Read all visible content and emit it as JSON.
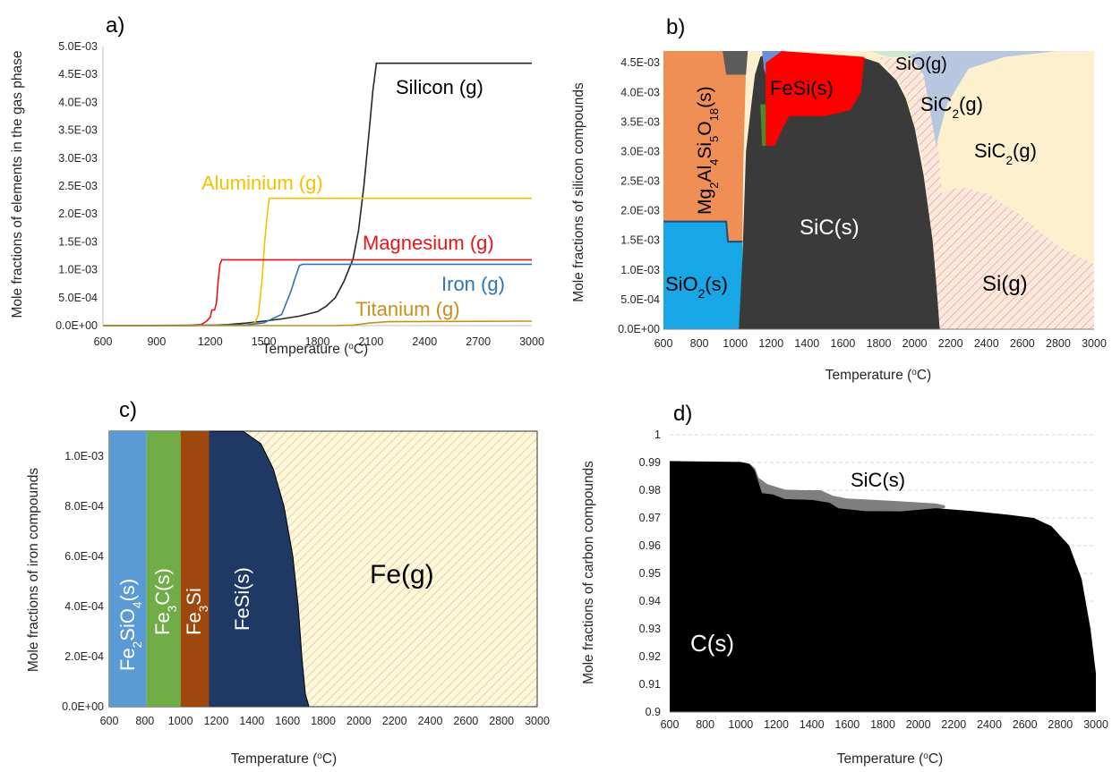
{
  "colors": {
    "silicon": "#262626",
    "aluminium": "#f5c000",
    "magnesium": "#e8141b",
    "iron": "#2e75b6",
    "titanium": "#c8901a",
    "sio2": "#17a6e6",
    "mgalsi": "#f08f55",
    "sic": "#3a3a3a",
    "sic_dark": "#5c5c5c",
    "fesi_b": "#ff0000",
    "fesi_c": "#203864",
    "fe2sio4": "#5b9bd5",
    "fe3c": "#70ad47",
    "fe3si": "#9e480e",
    "blue_b": "#6b8fd6",
    "green_b": "#4e8a2a",
    "sio_g": "#cfe6cf",
    "sic2_g_upper": "#b8c7e0",
    "sic2_g": "#fdf0cf",
    "si_g_hatch": "#f4c6b0",
    "fe_g_hatch": "#f0d68e",
    "fe_g_bg": "#fff8e1",
    "c_s": "#000000",
    "sic_s_d": "#7f7f7f",
    "grid": "#d9d9d9"
  },
  "chart_data": [
    {
      "panel": "a)",
      "type": "line",
      "xlabel": "Temperature (°C)",
      "ylabel": "Mole fractions of elements in the gas phase",
      "xlim": [
        600,
        3000
      ],
      "ylim": [
        0,
        0.005
      ],
      "xticks": [
        "600",
        "900",
        "1200",
        "1500",
        "1800",
        "2100",
        "2400",
        "2700",
        "3000"
      ],
      "yticks": [
        "0.0E+00",
        "5.0E-04",
        "1.0E-03",
        "1.5E-03",
        "2.0E-03",
        "2.5E-03",
        "3.0E-03",
        "3.5E-03",
        "4.0E-03",
        "4.5E-03",
        "5.0E-03"
      ],
      "labels": [
        "Silicon (g)",
        "Aluminium (g)",
        "Magnesium (g)",
        "Iron (g)",
        "Titanium (g)"
      ],
      "series": [
        {
          "name": "Silicon (g)",
          "color_key": "silicon",
          "points": [
            [
              600,
              0
            ],
            [
              1100,
              2e-06
            ],
            [
              1200,
              8e-06
            ],
            [
              1300,
              2e-05
            ],
            [
              1400,
              4.5e-05
            ],
            [
              1500,
              8e-05
            ],
            [
              1600,
              0.00012
            ],
            [
              1700,
              0.00017
            ],
            [
              1800,
              0.00025
            ],
            [
              1850,
              0.00035
            ],
            [
              1900,
              0.0005
            ],
            [
              1950,
              0.0008
            ],
            [
              2000,
              0.0012
            ],
            [
              2030,
              0.0017
            ],
            [
              2060,
              0.0025
            ],
            [
              2090,
              0.0035
            ],
            [
              2110,
              0.0042
            ],
            [
              2130,
              0.0047
            ],
            [
              3000,
              0.0047
            ]
          ]
        },
        {
          "name": "Aluminium (g)",
          "color_key": "aluminium",
          "points": [
            [
              600,
              0
            ],
            [
              1400,
              1e-05
            ],
            [
              1450,
              5e-05
            ],
            [
              1470,
              0.0002
            ],
            [
              1490,
              0.0008
            ],
            [
              1505,
              0.0015
            ],
            [
              1520,
              0.002
            ],
            [
              1530,
              0.00228
            ],
            [
              3000,
              0.00228
            ]
          ]
        },
        {
          "name": "Magnesium (g)",
          "color_key": "magnesium",
          "points": [
            [
              600,
              0
            ],
            [
              1050,
              0
            ],
            [
              1150,
              2e-05
            ],
            [
              1180,
              8e-05
            ],
            [
              1200,
              0.00015
            ],
            [
              1210,
              0.00028
            ],
            [
              1225,
              0.00028
            ],
            [
              1235,
              0.0004
            ],
            [
              1245,
              0.0008
            ],
            [
              1255,
              0.0011
            ],
            [
              1265,
              0.00118
            ],
            [
              3000,
              0.00118
            ]
          ]
        },
        {
          "name": "Iron (g)",
          "color_key": "iron",
          "points": [
            [
              600,
              0
            ],
            [
              1400,
              1e-05
            ],
            [
              1500,
              5e-05
            ],
            [
              1600,
              0.0002
            ],
            [
              1650,
              0.0006
            ],
            [
              1680,
              0.0009
            ],
            [
              1700,
              0.00108
            ],
            [
              1720,
              0.0011
            ],
            [
              3000,
              0.0011
            ]
          ]
        },
        {
          "name": "Titanium (g)",
          "color_key": "titanium",
          "points": [
            [
              600,
              0
            ],
            [
              1900,
              0
            ],
            [
              2000,
              1e-05
            ],
            [
              2100,
              5e-05
            ],
            [
              2200,
              7e-05
            ],
            [
              3000,
              8e-05
            ]
          ]
        }
      ]
    },
    {
      "panel": "b)",
      "type": "area",
      "xlabel": "Temperature (°C)",
      "ylabel": "Mole fractions of silicon compounds",
      "xlim": [
        600,
        3000
      ],
      "ylim": [
        0,
        0.0047
      ],
      "xticks": [
        "600",
        "800",
        "1000",
        "1200",
        "1400",
        "1600",
        "1800",
        "2000",
        "2200",
        "2400",
        "2600",
        "2800",
        "3000"
      ],
      "yticks": [
        "0.0E+00",
        "5.0E-04",
        "1.0E-03",
        "1.5E-03",
        "2.0E-03",
        "2.5E-03",
        "3.0E-03",
        "3.5E-03",
        "4.0E-03",
        "4.5E-03"
      ],
      "labels": [
        "SiO(g)",
        "FeSi(s)",
        "SiC(s)",
        "Si(g)"
      ],
      "sub_labels": [
        {
          "main": "Mg",
          "sub1": "2",
          "mid1": "Al",
          "sub2": "4",
          "mid2": "Si",
          "sub3": "5",
          "mid3": "O",
          "sub4": "18",
          "end": "(s)"
        }
      ],
      "sio2_label": {
        "main": "SiO",
        "sub": "2",
        "end": "(s)"
      },
      "sic2_label": {
        "main": "SiC",
        "sub": "2",
        "end": "(g)"
      },
      "regions": [
        {
          "name": "SiO2(s)",
          "color_key": "sio2",
          "points": [
            [
              600,
              0
            ],
            [
              1040,
              0
            ],
            [
              1040,
              0.00148
            ],
            [
              960,
              0.00148
            ],
            [
              950,
              0.00182
            ],
            [
              600,
              0.00182
            ]
          ]
        },
        {
          "name": "Mg2Al4Si5O18(s)",
          "color_key": "mgalsi",
          "points": [
            [
              600,
              0.00182
            ],
            [
              950,
              0.00182
            ],
            [
              960,
              0.00148
            ],
            [
              1040,
              0.00148
            ],
            [
              1045,
              0.0028
            ],
            [
              1060,
              0.0044
            ],
            [
              1040,
              0.0047
            ],
            [
              600,
              0.0047
            ]
          ]
        },
        {
          "name": "SiC(s)",
          "color_key": "sic",
          "points": [
            [
              1020,
              0
            ],
            [
              1040,
              0.0012
            ],
            [
              1060,
              0.003
            ],
            [
              1090,
              0.0038
            ],
            [
              1110,
              0.0043
            ],
            [
              1140,
              0.0046
            ],
            [
              1200,
              0.0047
            ],
            [
              1700,
              0.0046
            ],
            [
              1800,
              0.0045
            ],
            [
              1900,
              0.0042
            ],
            [
              1950,
              0.0039
            ],
            [
              2000,
              0.0034
            ],
            [
              2050,
              0.0026
            ],
            [
              2100,
              0.0015
            ],
            [
              2120,
              0.0008
            ],
            [
              2140,
              0
            ]
          ]
        },
        {
          "name": "FeSi(s)",
          "color_key": "fesi_b",
          "points": [
            [
              1170,
              0.0031
            ],
            [
              1170,
              0.0045
            ],
            [
              1260,
              0.0047
            ],
            [
              1720,
              0.0046
            ],
            [
              1700,
              0.004
            ],
            [
              1640,
              0.0037
            ],
            [
              1500,
              0.0036
            ],
            [
              1300,
              0.0036
            ],
            [
              1250,
              0.0033
            ],
            [
              1220,
              0.0031
            ]
          ]
        },
        {
          "name": "Si(g)",
          "color_key": "si_g_hatch",
          "points": [
            [
              1800,
              0.0046
            ],
            [
              1950,
              0.004
            ],
            [
              2050,
              0.0028
            ],
            [
              2140,
              0
            ],
            [
              3000,
              0
            ],
            [
              3000,
              0.0011
            ],
            [
              2800,
              0.0014
            ],
            [
              2600,
              0.0019
            ],
            [
              2400,
              0.0023
            ],
            [
              2250,
              0.0024
            ],
            [
              2150,
              0.0023
            ],
            [
              2100,
              0.0045
            ]
          ]
        },
        {
          "name": "SiC2(g)",
          "color_key": "sic2_g",
          "points": [
            [
              2100,
              0.0045
            ],
            [
              2150,
              0.0023
            ],
            [
              2250,
              0.0024
            ],
            [
              2400,
              0.0023
            ],
            [
              2600,
              0.0019
            ],
            [
              2800,
              0.0014
            ],
            [
              3000,
              0.0011
            ],
            [
              3000,
              0.0047
            ],
            [
              2100,
              0.0047
            ]
          ]
        },
        {
          "name": "SiC2(g) upper",
          "color_key": "sic2_g_upper",
          "points": [
            [
              1950,
              0.0047
            ],
            [
              2050,
              0.0043
            ],
            [
              2120,
              0.0031
            ],
            [
              2180,
              0.0038
            ],
            [
              2300,
              0.0044
            ],
            [
              2500,
              0.0046
            ],
            [
              2800,
              0.0047
            ]
          ]
        },
        {
          "name": "SiO(g)",
          "color_key": "sio_g",
          "points": [
            [
              1750,
              0.0047
            ],
            [
              1850,
              0.0046
            ],
            [
              1950,
              0.0046
            ],
            [
              2050,
              0.0047
            ]
          ]
        }
      ]
    },
    {
      "panel": "c)",
      "type": "area",
      "xlabel": "Temperature (°C)",
      "ylabel": "Mole fractions of iron compounds",
      "xlim": [
        600,
        3000
      ],
      "ylim": [
        0,
        0.0011
      ],
      "xticks": [
        "600",
        "800",
        "1000",
        "1200",
        "1400",
        "1600",
        "1800",
        "2000",
        "2200",
        "2400",
        "2600",
        "2800",
        "3000"
      ],
      "yticks": [
        "0.0E+00",
        "2.0E-04",
        "4.0E-04",
        "6.0E-04",
        "8.0E-04",
        "1.0E-03"
      ],
      "labels": [
        "FeSi(s)",
        "Fe(g)"
      ],
      "fe2sio4_label": {
        "main": "Fe",
        "sub1": "2",
        "mid": "SiO",
        "sub2": "4",
        "end": "(s)"
      },
      "fe3c_label": {
        "main": "Fe",
        "sub": "3",
        "end": "C(s)"
      },
      "fe3si_label": {
        "main": "Fe",
        "sub": "3",
        "end": "Si"
      },
      "regions": [
        {
          "name": "Fe2SiO4(s)",
          "color_key": "fe2sio4",
          "x0": 600,
          "x1": 810
        },
        {
          "name": "Fe3C(s)",
          "color_key": "fe3c",
          "x0": 810,
          "x1": 1000
        },
        {
          "name": "Fe3Si(s)",
          "color_key": "fe3si",
          "x0": 1000,
          "x1": 1160
        },
        {
          "name": "FeSi(s)",
          "color_key": "fesi_c",
          "boundary": [
            [
              1160,
              0.0011
            ],
            [
              1350,
              0.0011
            ],
            [
              1450,
              0.00105
            ],
            [
              1520,
              0.00095
            ],
            [
              1580,
              0.0008
            ],
            [
              1630,
              0.0006
            ],
            [
              1660,
              0.0004
            ],
            [
              1680,
              0.0002
            ],
            [
              1700,
              5e-05
            ],
            [
              1720,
              0
            ]
          ]
        }
      ]
    },
    {
      "panel": "d)",
      "type": "area",
      "xlabel": "Temperature (°C)",
      "ylabel": "Mole fractions of carbon compounds",
      "xlim": [
        600,
        3000
      ],
      "ylim": [
        0.9,
        1.0
      ],
      "xticks": [
        "600",
        "800",
        "1000",
        "1200",
        "1400",
        "1600",
        "1800",
        "2000",
        "2200",
        "2400",
        "2600",
        "2800",
        "3000"
      ],
      "yticks": [
        "0.9",
        "0.91",
        "0.92",
        "0.93",
        "0.94",
        "0.95",
        "0.96",
        "0.97",
        "0.98",
        "0.99",
        "1"
      ],
      "labels": [
        "SiC(s)",
        "C(s)"
      ],
      "c_s": [
        [
          600,
          0.9905
        ],
        [
          1000,
          0.9902
        ],
        [
          1050,
          0.9895
        ],
        [
          1080,
          0.987
        ],
        [
          1120,
          0.979
        ],
        [
          1180,
          0.9785
        ],
        [
          1250,
          0.9768
        ],
        [
          1400,
          0.9765
        ],
        [
          1500,
          0.9755
        ],
        [
          1550,
          0.9735
        ],
        [
          1700,
          0.9725
        ],
        [
          1900,
          0.9724
        ],
        [
          2100,
          0.9735
        ],
        [
          2300,
          0.9725
        ],
        [
          2500,
          0.9712
        ],
        [
          2650,
          0.97
        ],
        [
          2750,
          0.967
        ],
        [
          2850,
          0.96
        ],
        [
          2920,
          0.948
        ],
        [
          2970,
          0.93
        ],
        [
          3000,
          0.914
        ]
      ],
      "sic_s": [
        [
          1030,
          0.9905
        ],
        [
          1080,
          0.988
        ],
        [
          1100,
          0.9845
        ],
        [
          1150,
          0.9822
        ],
        [
          1250,
          0.9802
        ],
        [
          1350,
          0.98
        ],
        [
          1450,
          0.98
        ],
        [
          1520,
          0.978
        ],
        [
          1600,
          0.977
        ],
        [
          1900,
          0.976
        ],
        [
          2100,
          0.9752
        ],
        [
          2150,
          0.9745
        ]
      ]
    }
  ]
}
